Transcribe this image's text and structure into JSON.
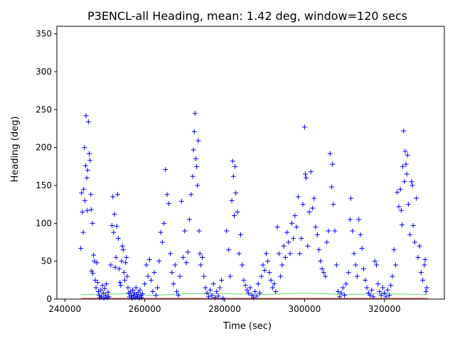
{
  "chart_data": {
    "type": "scatter",
    "title": "P3ENCL-all Heading, mean: 1.42 deg, window=120 secs",
    "xlabel": "Time (sec)",
    "ylabel": "Heading (deg)",
    "xlim": [
      238000,
      335000
    ],
    "ylim": [
      0,
      360
    ],
    "xticks": [
      240000,
      260000,
      280000,
      300000,
      320000
    ],
    "xtick_labels": [
      "240000",
      "260000",
      "280000",
      "300000",
      "320000"
    ],
    "yticks": [
      0,
      50,
      100,
      150,
      200,
      250,
      300,
      350
    ],
    "ytick_labels": [
      "0",
      "50",
      "100",
      "150",
      "200",
      "250",
      "300",
      "350"
    ],
    "grid": false,
    "legend": "none",
    "series": [
      {
        "marker": "+",
        "color": "#0000ff",
        "points": [
          [
            244000,
            67
          ],
          [
            244200,
            140
          ],
          [
            244400,
            115
          ],
          [
            244600,
            88
          ],
          [
            244700,
            145
          ],
          [
            244900,
            200
          ],
          [
            245000,
            130
          ],
          [
            245200,
            176
          ],
          [
            245300,
            242
          ],
          [
            245500,
            160
          ],
          [
            245600,
            117
          ],
          [
            245700,
            170
          ],
          [
            245900,
            234
          ],
          [
            246100,
            192
          ],
          [
            246300,
            183
          ],
          [
            246500,
            138
          ],
          [
            246600,
            118
          ],
          [
            246700,
            37
          ],
          [
            246900,
            100
          ],
          [
            247000,
            34
          ],
          [
            247200,
            58
          ],
          [
            247400,
            50
          ],
          [
            247600,
            25
          ],
          [
            247800,
            15
          ],
          [
            248000,
            48
          ],
          [
            248200,
            22
          ],
          [
            248400,
            10
          ],
          [
            248600,
            5
          ],
          [
            248800,
            2
          ],
          [
            249000,
            12
          ],
          [
            249200,
            3
          ],
          [
            249400,
            18
          ],
          [
            249600,
            8
          ],
          [
            249800,
            1
          ],
          [
            250000,
            14
          ],
          [
            250200,
            5
          ],
          [
            250400,
            20
          ],
          [
            250600,
            2
          ],
          [
            250800,
            9
          ],
          [
            251000,
            3
          ],
          [
            251500,
            45
          ],
          [
            251800,
            97
          ],
          [
            252000,
            135
          ],
          [
            252200,
            88
          ],
          [
            252400,
            112
          ],
          [
            252600,
            42
          ],
          [
            252800,
            55
          ],
          [
            253000,
            96
          ],
          [
            253200,
            138
          ],
          [
            253400,
            80
          ],
          [
            253600,
            40
          ],
          [
            253800,
            22
          ],
          [
            254000,
            18
          ],
          [
            254200,
            50
          ],
          [
            254400,
            70
          ],
          [
            254600,
            65
          ],
          [
            254800,
            35
          ],
          [
            255000,
            25
          ],
          [
            255200,
            48
          ],
          [
            255400,
            55
          ],
          [
            255600,
            30
          ],
          [
            255800,
            15
          ],
          [
            256000,
            8
          ],
          [
            256200,
            3
          ],
          [
            256400,
            10
          ],
          [
            256600,
            5
          ],
          [
            256800,
            1
          ],
          [
            257000,
            12
          ],
          [
            257200,
            4
          ],
          [
            257400,
            8
          ],
          [
            257600,
            2
          ],
          [
            257800,
            15
          ],
          [
            258000,
            6
          ],
          [
            258200,
            3
          ],
          [
            258400,
            9
          ],
          [
            258600,
            1
          ],
          [
            258800,
            12
          ],
          [
            259000,
            5
          ],
          [
            259200,
            2
          ],
          [
            259400,
            7
          ],
          [
            260000,
            20
          ],
          [
            260400,
            45
          ],
          [
            260800,
            30
          ],
          [
            261200,
            52
          ],
          [
            261600,
            25
          ],
          [
            262000,
            10
          ],
          [
            262400,
            35
          ],
          [
            262800,
            5
          ],
          [
            263200,
            15
          ],
          [
            263600,
            50
          ],
          [
            264000,
            88
          ],
          [
            264400,
            75
          ],
          [
            264800,
            100
          ],
          [
            265200,
            171
          ],
          [
            265600,
            138
          ],
          [
            266000,
            126
          ],
          [
            266400,
            60
          ],
          [
            266800,
            35
          ],
          [
            267200,
            20
          ],
          [
            267600,
            45
          ],
          [
            268000,
            10
          ],
          [
            268400,
            5
          ],
          [
            268800,
            30
          ],
          [
            269200,
            129
          ],
          [
            269600,
            55
          ],
          [
            270000,
            90
          ],
          [
            270400,
            48
          ],
          [
            270800,
            62
          ],
          [
            271200,
            105
          ],
          [
            271600,
            138
          ],
          [
            272000,
            162
          ],
          [
            272200,
            197
          ],
          [
            272400,
            221
          ],
          [
            272600,
            245
          ],
          [
            272800,
            185
          ],
          [
            273000,
            175
          ],
          [
            273200,
            150
          ],
          [
            273400,
            209
          ],
          [
            273600,
            90
          ],
          [
            273800,
            60
          ],
          [
            274000,
            45
          ],
          [
            274400,
            55
          ],
          [
            274800,
            30
          ],
          [
            275200,
            15
          ],
          [
            275600,
            8
          ],
          [
            276000,
            3
          ],
          [
            276400,
            12
          ],
          [
            276800,
            5
          ],
          [
            277200,
            20
          ],
          [
            277600,
            2
          ],
          [
            278000,
            10
          ],
          [
            278400,
            4
          ],
          [
            278800,
            15
          ],
          [
            279200,
            25
          ],
          [
            279600,
            1
          ],
          [
            280500,
            90
          ],
          [
            281000,
            65
          ],
          [
            281400,
            30
          ],
          [
            281800,
            130
          ],
          [
            282000,
            182
          ],
          [
            282200,
            162
          ],
          [
            282400,
            110
          ],
          [
            282600,
            175
          ],
          [
            282800,
            140
          ],
          [
            283200,
            115
          ],
          [
            283600,
            60
          ],
          [
            284000,
            85
          ],
          [
            284400,
            45
          ],
          [
            284800,
            25
          ],
          [
            285200,
            18
          ],
          [
            285600,
            12
          ],
          [
            286000,
            8
          ],
          [
            286400,
            15
          ],
          [
            286800,
            5
          ],
          [
            287200,
            2
          ],
          [
            287600,
            10
          ],
          [
            288000,
            4
          ],
          [
            288400,
            20
          ],
          [
            288800,
            8
          ],
          [
            289200,
            30
          ],
          [
            289600,
            45
          ],
          [
            290000,
            38
          ],
          [
            290400,
            60
          ],
          [
            290800,
            50
          ],
          [
            291200,
            35
          ],
          [
            291600,
            25
          ],
          [
            292000,
            15
          ],
          [
            292400,
            20
          ],
          [
            292800,
            10
          ],
          [
            293200,
            95
          ],
          [
            293600,
            60
          ],
          [
            294000,
            30
          ],
          [
            294400,
            45
          ],
          [
            294800,
            70
          ],
          [
            295200,
            55
          ],
          [
            295600,
            88
          ],
          [
            296000,
            75
          ],
          [
            296400,
            60
          ],
          [
            296800,
            100
          ],
          [
            297200,
            80
          ],
          [
            297600,
            110
          ],
          [
            298000,
            95
          ],
          [
            298400,
            135
          ],
          [
            298800,
            60
          ],
          [
            299200,
            80
          ],
          [
            299600,
            125
          ],
          [
            300000,
            227
          ],
          [
            300200,
            165
          ],
          [
            300400,
            160
          ],
          [
            300800,
            70
          ],
          [
            301200,
            115
          ],
          [
            301600,
            168
          ],
          [
            302000,
            120
          ],
          [
            302400,
            133
          ],
          [
            302800,
            95
          ],
          [
            303200,
            85
          ],
          [
            303600,
            65
          ],
          [
            304000,
            50
          ],
          [
            304400,
            40
          ],
          [
            304800,
            35
          ],
          [
            305200,
            30
          ],
          [
            305600,
            75
          ],
          [
            306000,
            90
          ],
          [
            306400,
            192
          ],
          [
            306800,
            148
          ],
          [
            307000,
            178
          ],
          [
            307200,
            125
          ],
          [
            307600,
            90
          ],
          [
            308000,
            45
          ],
          [
            308400,
            10
          ],
          [
            308800,
            3
          ],
          [
            309200,
            8
          ],
          [
            309600,
            15
          ],
          [
            310000,
            5
          ],
          [
            310400,
            20
          ],
          [
            311000,
            35
          ],
          [
            311400,
            105
          ],
          [
            311600,
            133
          ],
          [
            312000,
            90
          ],
          [
            312400,
            60
          ],
          [
            312800,
            45
          ],
          [
            313200,
            30
          ],
          [
            313600,
            105
          ],
          [
            314000,
            85
          ],
          [
            314400,
            67
          ],
          [
            314800,
            40
          ],
          [
            315200,
            25
          ],
          [
            315600,
            15
          ],
          [
            316000,
            8
          ],
          [
            316400,
            5
          ],
          [
            316800,
            12
          ],
          [
            317200,
            3
          ],
          [
            317600,
            50
          ],
          [
            318000,
            45
          ],
          [
            318400,
            20
          ],
          [
            318800,
            10
          ],
          [
            319200,
            5
          ],
          [
            319600,
            15
          ],
          [
            320000,
            8
          ],
          [
            320400,
            3
          ],
          [
            320800,
            12
          ],
          [
            321200,
            5
          ],
          [
            321600,
            18
          ],
          [
            322000,
            30
          ],
          [
            322400,
            65
          ],
          [
            322800,
            45
          ],
          [
            323200,
            141
          ],
          [
            323600,
            122
          ],
          [
            324000,
            145
          ],
          [
            324200,
            117
          ],
          [
            324400,
            98
          ],
          [
            324600,
            175
          ],
          [
            324800,
            222
          ],
          [
            325000,
            155
          ],
          [
            325200,
            195
          ],
          [
            325400,
            178
          ],
          [
            325600,
            165
          ],
          [
            325800,
            190
          ],
          [
            326000,
            125
          ],
          [
            326400,
            85
          ],
          [
            326800,
            155
          ],
          [
            327000,
            150
          ],
          [
            327200,
            97
          ],
          [
            327600,
            75
          ],
          [
            328000,
            133
          ],
          [
            328400,
            55
          ],
          [
            328800,
            70
          ],
          [
            329200,
            35
          ],
          [
            329600,
            25
          ],
          [
            330000,
            45
          ],
          [
            330200,
            52
          ],
          [
            330400,
            10
          ],
          [
            330600,
            15
          ]
        ]
      },
      {
        "type": "line",
        "color": "#66dd66",
        "points": [
          [
            244000,
            6
          ],
          [
            255000,
            7
          ],
          [
            262000,
            5
          ],
          [
            270000,
            7
          ],
          [
            280000,
            7
          ],
          [
            290000,
            6
          ],
          [
            300000,
            8
          ],
          [
            310000,
            6
          ],
          [
            320000,
            7
          ],
          [
            331000,
            6
          ]
        ]
      },
      {
        "type": "line",
        "color": "#ee4444",
        "points": [
          [
            244000,
            1
          ],
          [
            331000,
            1
          ]
        ]
      }
    ]
  }
}
